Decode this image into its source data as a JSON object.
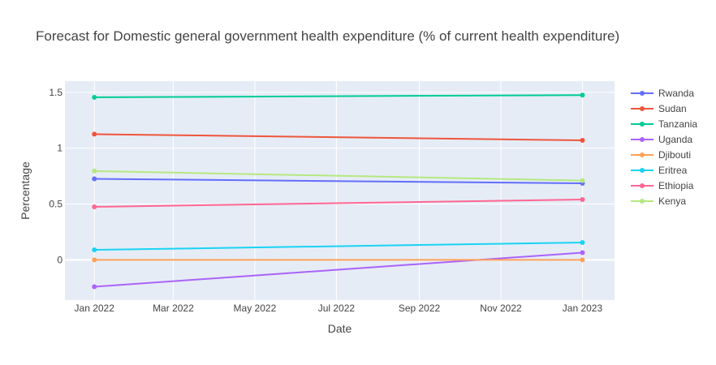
{
  "chart_data": {
    "type": "line",
    "title": "Forecast for Domestic general government health expenditure (% of current health expenditure)",
    "xlabel": "Date",
    "ylabel": "Percentage",
    "x": [
      "2022-01-01",
      "2023-01-01"
    ],
    "x_ticks": [
      {
        "date": "2022-01-01",
        "label": "Jan 2022"
      },
      {
        "date": "2022-03-01",
        "label": "Mar 2022"
      },
      {
        "date": "2022-05-01",
        "label": "May 2022"
      },
      {
        "date": "2022-07-01",
        "label": "Jul 2022"
      },
      {
        "date": "2022-09-01",
        "label": "Sep 2022"
      },
      {
        "date": "2022-11-01",
        "label": "Nov 2022"
      },
      {
        "date": "2023-01-01",
        "label": "Jan 2023"
      }
    ],
    "xlim": [
      "2021-12-10",
      "2023-01-25"
    ],
    "y_ticks": [
      {
        "value": 0,
        "label": "0"
      },
      {
        "value": 0.5,
        "label": "0.5"
      },
      {
        "value": 1,
        "label": "1"
      },
      {
        "value": 1.5,
        "label": "1.5"
      }
    ],
    "ylim": [
      -0.36,
      1.6
    ],
    "grid": true,
    "legend_position": "right",
    "series": [
      {
        "name": "Rwanda",
        "color": "#636EFA",
        "values": [
          0.725,
          0.685
        ]
      },
      {
        "name": "Sudan",
        "color": "#EF553B",
        "values": [
          1.125,
          1.07
        ]
      },
      {
        "name": "Tanzania",
        "color": "#00CC96",
        "values": [
          1.455,
          1.475
        ]
      },
      {
        "name": "Uganda",
        "color": "#AB63FA",
        "values": [
          -0.24,
          0.065
        ]
      },
      {
        "name": "Djibouti",
        "color": "#FFA15A",
        "values": [
          0.0,
          0.0
        ]
      },
      {
        "name": "Eritrea",
        "color": "#19D3F3",
        "values": [
          0.09,
          0.155
        ]
      },
      {
        "name": "Ethiopia",
        "color": "#FF6692",
        "values": [
          0.475,
          0.54
        ]
      },
      {
        "name": "Kenya",
        "color": "#B6E880",
        "values": [
          0.795,
          0.71
        ]
      }
    ]
  }
}
